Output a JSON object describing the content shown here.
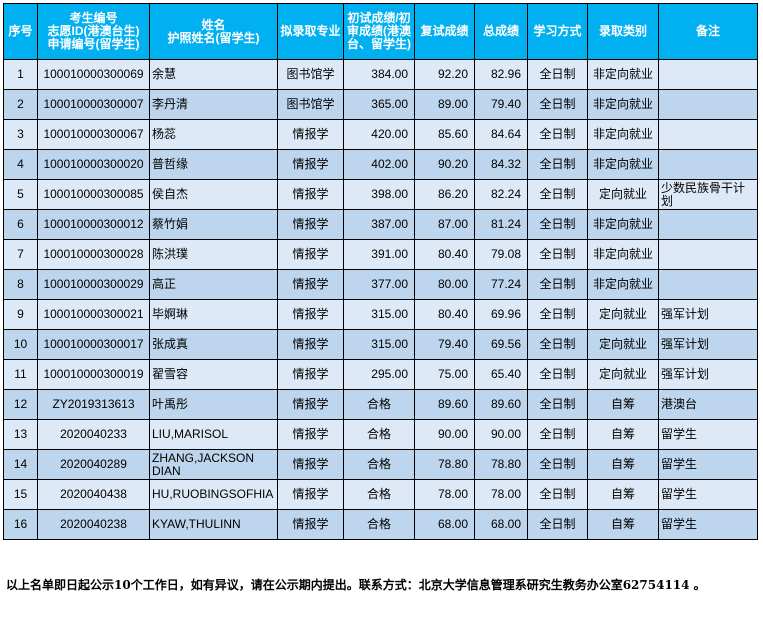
{
  "headers": [
    "序号",
    "考生编号\n志愿ID(港澳台生)\n申请编号(留学生)",
    "姓名\n护照姓名(留学生)",
    "拟录取专业",
    "初试成绩/初审成绩(港澳台、留学生)",
    "复试成绩",
    "总成绩",
    "学习方式",
    "录取类别",
    "备注"
  ],
  "rows": [
    [
      "1",
      "100010000300069",
      "余慧",
      "图书馆学",
      "384.00",
      "92.20",
      "82.96",
      "全日制",
      "非定向就业",
      ""
    ],
    [
      "2",
      "100010000300007",
      "李丹清",
      "图书馆学",
      "365.00",
      "89.00",
      "79.40",
      "全日制",
      "非定向就业",
      ""
    ],
    [
      "3",
      "100010000300067",
      "杨蕊",
      "情报学",
      "420.00",
      "85.60",
      "84.64",
      "全日制",
      "非定向就业",
      ""
    ],
    [
      "4",
      "100010000300020",
      "普哲缘",
      "情报学",
      "402.00",
      "90.20",
      "84.32",
      "全日制",
      "非定向就业",
      ""
    ],
    [
      "5",
      "100010000300085",
      "侯自杰",
      "情报学",
      "398.00",
      "86.20",
      "82.24",
      "全日制",
      "定向就业",
      "少数民族骨干计划"
    ],
    [
      "6",
      "100010000300012",
      "蔡竹娟",
      "情报学",
      "387.00",
      "87.00",
      "81.24",
      "全日制",
      "非定向就业",
      ""
    ],
    [
      "7",
      "100010000300028",
      "陈洪璞",
      "情报学",
      "391.00",
      "80.40",
      "79.08",
      "全日制",
      "非定向就业",
      ""
    ],
    [
      "8",
      "100010000300029",
      "高正",
      "情报学",
      "377.00",
      "80.00",
      "77.24",
      "全日制",
      "非定向就业",
      ""
    ],
    [
      "9",
      "100010000300021",
      "毕婀琳",
      "情报学",
      "315.00",
      "80.40",
      "69.96",
      "全日制",
      "定向就业",
      "强军计划"
    ],
    [
      "10",
      "100010000300017",
      "张成真",
      "情报学",
      "315.00",
      "79.40",
      "69.56",
      "全日制",
      "定向就业",
      "强军计划"
    ],
    [
      "11",
      "100010000300019",
      "翟雪容",
      "情报学",
      "295.00",
      "75.00",
      "65.40",
      "全日制",
      "定向就业",
      "强军计划"
    ],
    [
      "12",
      "ZY2019313613",
      "叶禹彤",
      "情报学",
      "合格",
      "89.60",
      "89.60",
      "全日制",
      "自筹",
      "港澳台"
    ],
    [
      "13",
      "2020040233",
      "LIU,MARISOL",
      "情报学",
      "合格",
      "90.00",
      "90.00",
      "全日制",
      "自筹",
      "留学生"
    ],
    [
      "14",
      "2020040289",
      "ZHANG,JACKSON DIAN",
      "情报学",
      "合格",
      "78.80",
      "78.80",
      "全日制",
      "自筹",
      "留学生"
    ],
    [
      "15",
      "2020040438",
      "HU,RUOBINGSOFHIA",
      "情报学",
      "合格",
      "78.00",
      "78.00",
      "全日制",
      "自筹",
      "留学生"
    ],
    [
      "16",
      "2020040238",
      "KYAW,THULINN",
      "情报学",
      "合格",
      "68.00",
      "68.00",
      "全日制",
      "自筹",
      "留学生"
    ]
  ],
  "colors": {
    "header": "#00b0f0",
    "row_light": "#dde9f6",
    "row_dark": "#bdd6ee"
  },
  "footer": "以上名单即日起公示10个工作日，如有异议，请在公示期内提出。联系方式：北京大学信息管理系研究生教务办公室62754114 。"
}
